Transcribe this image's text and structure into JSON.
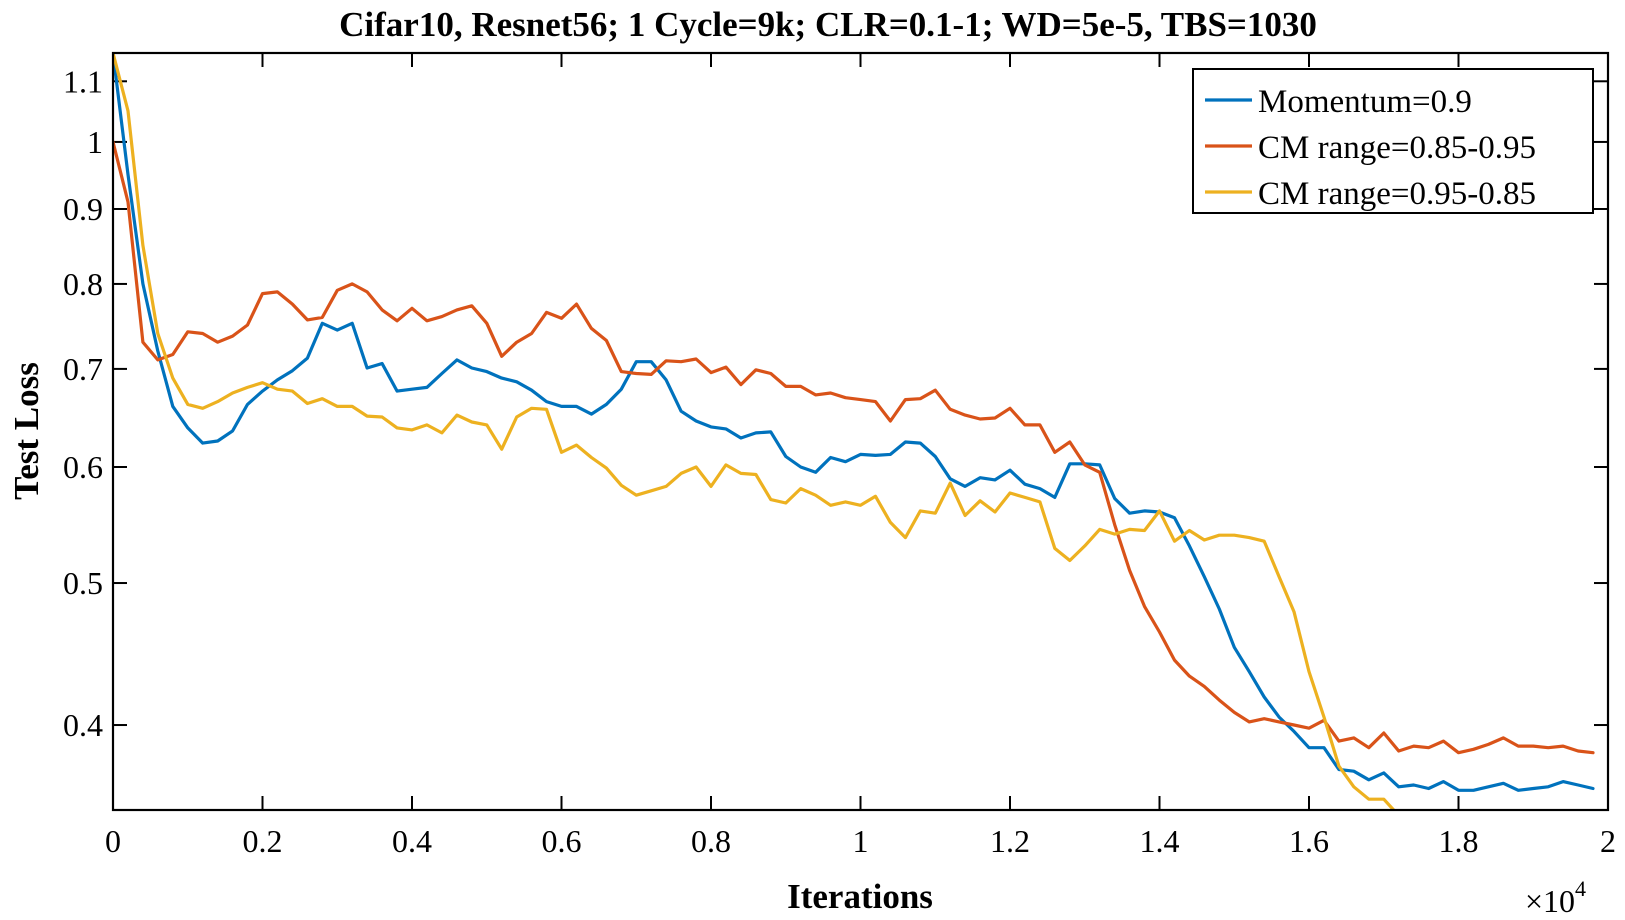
{
  "chart_data": {
    "type": "line",
    "title": "Cifar10, Resnet56; 1 Cycle=9k; CLR=0.1-1; WD=5e-5, TBS=1030",
    "xlabel": "Iterations",
    "ylabel": "Test Loss",
    "x_multiplier_label": "×10",
    "x_multiplier_exp": "4",
    "xlim": [
      0,
      2
    ],
    "ylim": [
      0.35,
      1.15
    ],
    "yscale": "log",
    "xticks": [
      "0",
      "0.2",
      "0.4",
      "0.6",
      "0.8",
      "1",
      "1.2",
      "1.4",
      "1.6",
      "1.8",
      "2"
    ],
    "yticks": [
      "0.4",
      "0.5",
      "0.6",
      "0.7",
      "0.8",
      "0.9",
      "1",
      "1.1"
    ],
    "grid": false,
    "legend_position": "top-right",
    "x": [
      0,
      0.02,
      0.04,
      0.06,
      0.08,
      0.1,
      0.12,
      0.14,
      0.16,
      0.18,
      0.2,
      0.22,
      0.24,
      0.26,
      0.28,
      0.3,
      0.32,
      0.34,
      0.36,
      0.38,
      0.4,
      0.42,
      0.44,
      0.46,
      0.48,
      0.5,
      0.52,
      0.54,
      0.56,
      0.58,
      0.6,
      0.62,
      0.64,
      0.66,
      0.68,
      0.7,
      0.72,
      0.74,
      0.76,
      0.78,
      0.8,
      0.82,
      0.84,
      0.86,
      0.88,
      0.9,
      0.92,
      0.94,
      0.96,
      0.98,
      1,
      1.02,
      1.04,
      1.06,
      1.08,
      1.1,
      1.12,
      1.14,
      1.16,
      1.18,
      1.2,
      1.22,
      1.24,
      1.26,
      1.28,
      1.3,
      1.32,
      1.34,
      1.36,
      1.38,
      1.4,
      1.42,
      1.44,
      1.46,
      1.48,
      1.5,
      1.52,
      1.54,
      1.56,
      1.58,
      1.6,
      1.62,
      1.64,
      1.66,
      1.68,
      1.7,
      1.72,
      1.74,
      1.76,
      1.78,
      1.8,
      1.82,
      1.84,
      1.86,
      1.88,
      1.9,
      1.92,
      1.94,
      1.96,
      1.98
    ],
    "series": [
      {
        "name": "Momentum=0.9",
        "color": "#0072BD",
        "values": [
          1.15,
          0.95,
          0.8,
          0.72,
          0.66,
          0.638,
          0.623,
          0.625,
          0.635,
          0.662,
          0.676,
          0.688,
          0.698,
          0.712,
          0.752,
          0.744,
          0.752,
          0.701,
          0.706,
          0.676,
          0.678,
          0.68,
          0.695,
          0.71,
          0.701,
          0.697,
          0.69,
          0.686,
          0.677,
          0.665,
          0.66,
          0.66,
          0.652,
          0.662,
          0.678,
          0.708,
          0.708,
          0.688,
          0.655,
          0.645,
          0.639,
          0.637,
          0.628,
          0.633,
          0.634,
          0.61,
          0.6,
          0.595,
          0.609,
          0.605,
          0.612,
          0.611,
          0.612,
          0.624,
          0.623,
          0.61,
          0.589,
          0.582,
          0.59,
          0.588,
          0.597,
          0.584,
          0.58,
          0.572,
          0.603,
          0.603,
          0.602,
          0.571,
          0.558,
          0.56,
          0.559,
          0.554,
          0.53,
          0.505,
          0.48,
          0.452,
          0.435,
          0.418,
          0.405,
          0.396,
          0.386,
          0.386,
          0.373,
          0.372,
          0.367,
          0.371,
          0.363,
          0.364,
          0.362,
          0.366,
          0.361,
          0.361,
          0.363,
          0.365,
          0.361,
          0.362,
          0.363,
          0.366,
          0.364,
          0.362
        ]
      },
      {
        "name": "CM range=0.85-0.95",
        "color": "#D95319",
        "values": [
          1.0,
          0.91,
          0.73,
          0.71,
          0.716,
          0.742,
          0.74,
          0.73,
          0.737,
          0.75,
          0.788,
          0.79,
          0.775,
          0.756,
          0.759,
          0.792,
          0.8,
          0.79,
          0.768,
          0.755,
          0.77,
          0.755,
          0.76,
          0.768,
          0.773,
          0.752,
          0.714,
          0.73,
          0.74,
          0.765,
          0.758,
          0.775,
          0.746,
          0.732,
          0.697,
          0.695,
          0.694,
          0.709,
          0.708,
          0.711,
          0.696,
          0.702,
          0.683,
          0.699,
          0.695,
          0.681,
          0.681,
          0.672,
          0.674,
          0.669,
          0.667,
          0.665,
          0.645,
          0.667,
          0.668,
          0.677,
          0.657,
          0.651,
          0.647,
          0.648,
          0.658,
          0.641,
          0.641,
          0.614,
          0.624,
          0.602,
          0.595,
          0.548,
          0.51,
          0.482,
          0.463,
          0.443,
          0.432,
          0.425,
          0.416,
          0.408,
          0.402,
          0.404,
          0.402,
          0.4,
          0.398,
          0.403,
          0.39,
          0.392,
          0.386,
          0.395,
          0.384,
          0.387,
          0.386,
          0.39,
          0.383,
          0.385,
          0.388,
          0.392,
          0.387,
          0.387,
          0.386,
          0.387,
          0.384,
          0.383
        ]
      },
      {
        "name": "CM range=0.95-0.85",
        "color": "#EDB120",
        "values": [
          1.15,
          1.05,
          0.85,
          0.74,
          0.69,
          0.662,
          0.658,
          0.665,
          0.674,
          0.68,
          0.685,
          0.678,
          0.676,
          0.663,
          0.668,
          0.66,
          0.66,
          0.65,
          0.649,
          0.638,
          0.636,
          0.641,
          0.633,
          0.651,
          0.644,
          0.641,
          0.617,
          0.649,
          0.658,
          0.657,
          0.614,
          0.621,
          0.609,
          0.599,
          0.583,
          0.574,
          0.578,
          0.582,
          0.594,
          0.6,
          0.582,
          0.602,
          0.594,
          0.593,
          0.57,
          0.567,
          0.58,
          0.574,
          0.565,
          0.568,
          0.565,
          0.573,
          0.55,
          0.537,
          0.56,
          0.558,
          0.585,
          0.556,
          0.569,
          0.559,
          0.576,
          0.572,
          0.568,
          0.528,
          0.518,
          0.53,
          0.544,
          0.54,
          0.544,
          0.543,
          0.56,
          0.534,
          0.543,
          0.535,
          0.539,
          0.539,
          0.537,
          0.534,
          0.505,
          0.478,
          0.435,
          0.405,
          0.375,
          0.363,
          0.356,
          0.356,
          0.347,
          0.348,
          0.344,
          0.346,
          0.337,
          0.34,
          0.343,
          0.346,
          0.338,
          0.339,
          0.342,
          0.344,
          0.337,
          0.333
        ]
      }
    ]
  }
}
